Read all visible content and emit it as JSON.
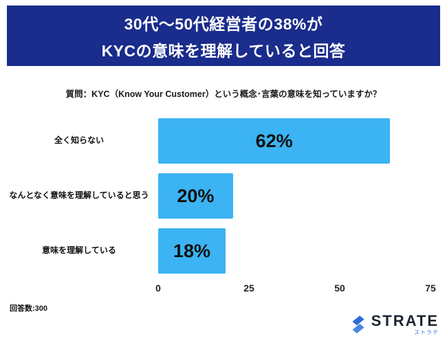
{
  "header": {
    "title_line1": "30代〜50代経営者の38%が",
    "title_line2": "KYCの意味を理解していると回答",
    "bg_color": "#1a2c8c"
  },
  "question": "質問：KYC（Know Your Customer）という概念･言葉の意味を知っていますか？",
  "chart_data": {
    "type": "bar",
    "orientation": "horizontal",
    "title": "30代〜50代経営者の38%がKYCの意味を理解していると回答",
    "categories": [
      "全く知らない",
      "なんとなく意味を理解していると思う",
      "意味を理解している"
    ],
    "values": [
      62,
      20,
      18
    ],
    "value_labels": [
      "62%",
      "20%",
      "18%"
    ],
    "xlabel": "",
    "ylabel": "",
    "xlim": [
      0,
      75
    ],
    "x_ticks": [
      0,
      25,
      50,
      75
    ],
    "grid": false,
    "legend": "none",
    "bar_color": "#3cb3f2"
  },
  "footer": {
    "respondents": "回答数:300",
    "logo_text": "STRATE",
    "logo_subtext": "ストラテ",
    "logo_color": "#3a7bd5"
  }
}
